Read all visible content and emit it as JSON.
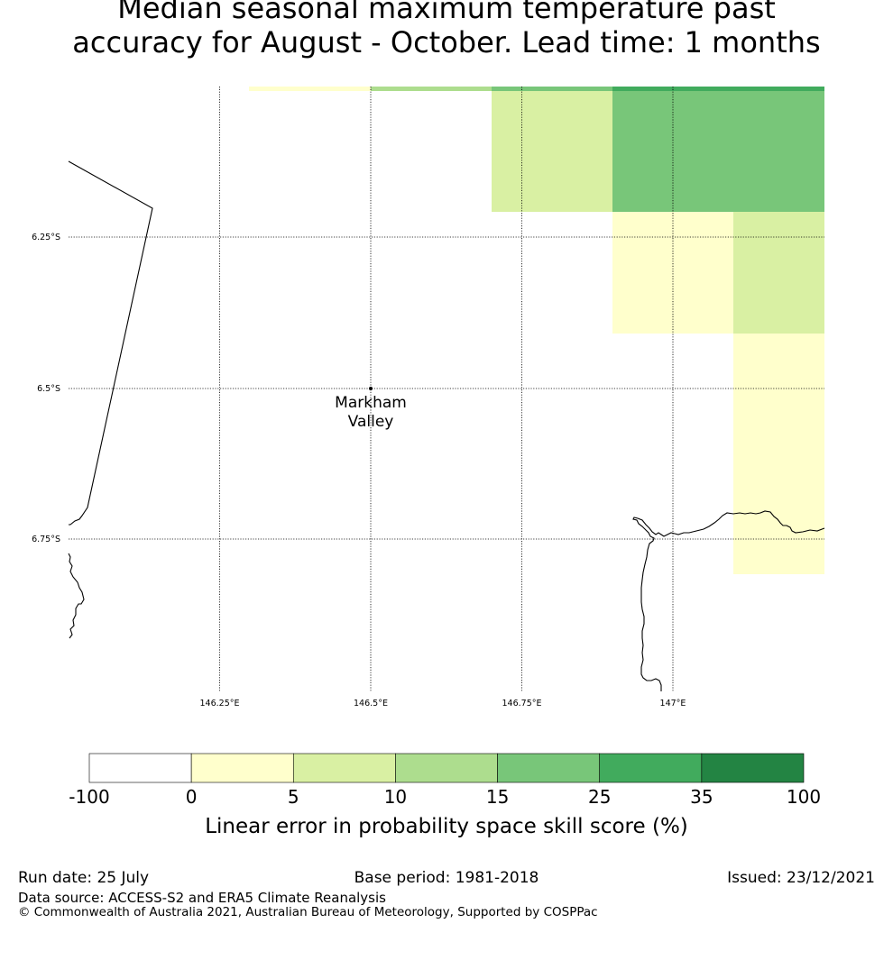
{
  "title_line1": "Median seasonal maximum temperature past",
  "title_line2": "accuracy for August - October. Lead time: 1 months",
  "map": {
    "lat_labels": [
      "6.25°S",
      "6.5°S",
      "6.75°S"
    ],
    "lon_labels": [
      "146.25°E",
      "146.5°E",
      "146.75°E",
      "147°E"
    ],
    "place_name_line1": "Markham",
    "place_name_line2": "Valley"
  },
  "colorbar": {
    "ticks": [
      "-100",
      "0",
      "5",
      "10",
      "15",
      "25",
      "35",
      "100"
    ],
    "colors": [
      "#ffffff",
      "#ffffcc",
      "#d9f0a3",
      "#addd8e",
      "#78c679",
      "#41ab5d",
      "#238443"
    ],
    "title": "Linear error in probability space skill score (%)"
  },
  "footer": {
    "run_date": "Run date: 25 July",
    "base_period": "Base period: 1981-2018",
    "issued": "Issued: 23/12/2021",
    "data_source": "Data source: ACCESS-S2 and ERA5 Climate Reanalysis",
    "copyright": "© Commonwealth of Australia 2021, Australian Bureau of Meteorology, Supported by COSPPac"
  }
}
